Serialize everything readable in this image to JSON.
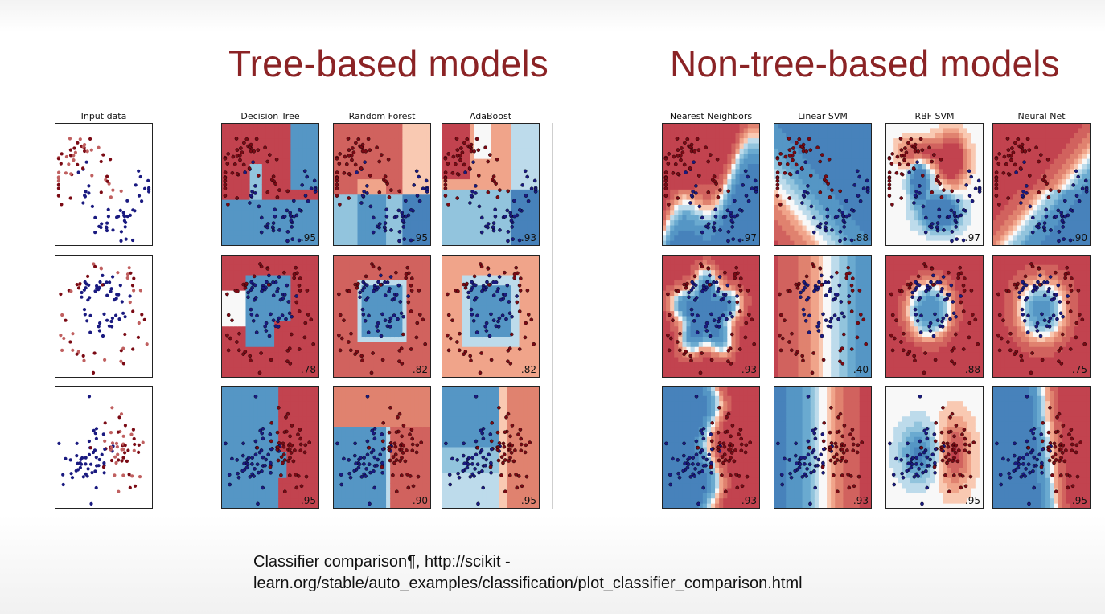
{
  "headings": {
    "tree": "Tree-based models",
    "non_tree": "Non-tree-based models"
  },
  "caption": {
    "line1": "Classifier comparison¶, http://scikit -",
    "line2": "learn.org/stable/auto_examples/classification/plot_classifier_comparison.html"
  },
  "colors": {
    "heading": "#8b2325",
    "class_red": "#a3202e",
    "class_blue": "#2f5f9a",
    "point_red": "#7a0a14",
    "point_blue": "#1a1a80"
  },
  "chart_data": {
    "type": "grid of decision-boundary plots",
    "columns": [
      "Input data",
      "Decision Tree",
      "Random Forest",
      "AdaBoost",
      "Nearest Neighbors",
      "Linear SVM",
      "RBF SVM",
      "Neural Net"
    ],
    "rows": [
      "moons",
      "circles",
      "linearly separable"
    ],
    "scores": {
      "Decision Tree": [
        ".95",
        ".78",
        ".95"
      ],
      "Random Forest": [
        ".95",
        ".82",
        ".90"
      ],
      "AdaBoost": [
        ".93",
        ".82",
        ".95"
      ],
      "Nearest Neighbors": [
        ".97",
        ".93",
        ".93"
      ],
      "Linear SVM": [
        ".88",
        ".40",
        ".93"
      ],
      "RBF SVM": [
        ".97",
        ".88",
        ".95"
      ],
      "Neural Net": [
        ".90",
        ".75",
        ".95"
      ]
    }
  }
}
